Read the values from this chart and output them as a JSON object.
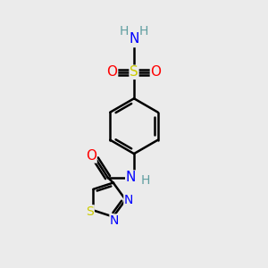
{
  "bg_color": "#ebebeb",
  "atom_colors": {
    "C": "#000000",
    "H": "#5f9ea0",
    "N": "#0000ff",
    "O": "#ff0000",
    "S": "#cccc00"
  },
  "bond_color": "#000000"
}
